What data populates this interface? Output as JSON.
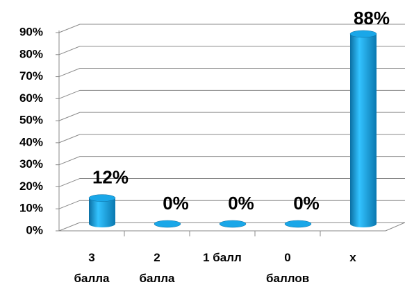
{
  "chart_data": {
    "type": "bar3d",
    "categories": [
      "3 балла",
      "2 балла",
      "1 балл",
      "0 баллов",
      "х"
    ],
    "values": [
      12,
      0,
      0,
      0,
      88
    ],
    "value_labels": [
      "12%",
      "0%",
      "0%",
      "0%",
      "88%"
    ],
    "color": "#1aa7e8",
    "ylim": [
      0,
      90
    ],
    "yticks": [
      {
        "value": 0,
        "label": "0%"
      },
      {
        "value": 10,
        "label": "10%"
      },
      {
        "value": 20,
        "label": "20%"
      },
      {
        "value": 30,
        "label": "30%"
      },
      {
        "value": 40,
        "label": "40%"
      },
      {
        "value": 50,
        "label": "50%"
      },
      {
        "value": 60,
        "label": "60%"
      },
      {
        "value": 70,
        "label": "70%"
      },
      {
        "value": 80,
        "label": "80%"
      },
      {
        "value": 90,
        "label": "90%"
      }
    ],
    "grid": true
  }
}
